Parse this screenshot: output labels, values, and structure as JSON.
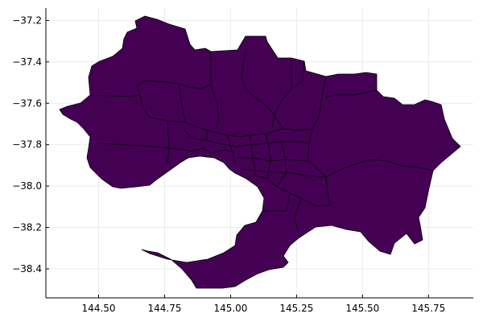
{
  "chart_data": {
    "type": "map",
    "title": "",
    "xlabel": "",
    "ylabel": "",
    "x_ticks": [
      "144.50",
      "144.75",
      "145.00",
      "145.25",
      "145.50",
      "145.75"
    ],
    "y_ticks": [
      "−37.2",
      "−37.4",
      "−37.6",
      "−37.8",
      "−38.0",
      "−38.2",
      "−38.4"
    ],
    "x_tick_values": [
      144.5,
      144.75,
      145.0,
      145.25,
      145.5,
      145.75
    ],
    "y_tick_values": [
      -37.2,
      -37.4,
      -37.6,
      -37.8,
      -38.0,
      -38.2,
      -38.4
    ],
    "xlim": [
      144.3,
      145.92
    ],
    "ylim": [
      -38.54,
      -37.14
    ],
    "grid": true,
    "legend": "none",
    "fill_color": "#440154",
    "border_color": "#000000"
  }
}
